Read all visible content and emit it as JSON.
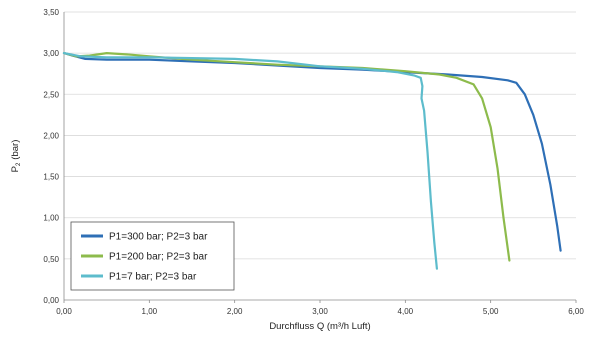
{
  "chart_data": {
    "type": "line",
    "title": "",
    "xlabel": "Durchfluss Q (m³/h Luft)",
    "ylabel_main": "P",
    "ylabel_sub": "2",
    "ylabel_unit": "(bar)",
    "xlim": [
      0,
      6
    ],
    "ylim": [
      0,
      3.5
    ],
    "x_ticks": [
      "0,00",
      "1,00",
      "2,00",
      "3,00",
      "4,00",
      "5,00",
      "6,00"
    ],
    "y_ticks": [
      "0,00",
      "0,50",
      "1,00",
      "1,50",
      "2,00",
      "2,50",
      "3,00",
      "3,50"
    ],
    "grid": "horizontal",
    "legend_position": "lower-left",
    "series": [
      {
        "name": "P1=300 bar; P2=3 bar",
        "color": "#2e6fb6",
        "points": [
          [
            0,
            3.0
          ],
          [
            0.1,
            2.97
          ],
          [
            0.25,
            2.93
          ],
          [
            0.5,
            2.92
          ],
          [
            1.0,
            2.92
          ],
          [
            1.5,
            2.9
          ],
          [
            2.0,
            2.88
          ],
          [
            2.5,
            2.85
          ],
          [
            3.0,
            2.82
          ],
          [
            3.5,
            2.8
          ],
          [
            4.0,
            2.77
          ],
          [
            4.5,
            2.74
          ],
          [
            4.9,
            2.71
          ],
          [
            5.2,
            2.67
          ],
          [
            5.3,
            2.64
          ],
          [
            5.4,
            2.5
          ],
          [
            5.5,
            2.25
          ],
          [
            5.6,
            1.9
          ],
          [
            5.7,
            1.4
          ],
          [
            5.78,
            0.9
          ],
          [
            5.82,
            0.6
          ]
        ]
      },
      {
        "name": "P1=200 bar; P2=3 bar",
        "color": "#8dbb4c",
        "points": [
          [
            0,
            3.0
          ],
          [
            0.15,
            2.96
          ],
          [
            0.3,
            2.97
          ],
          [
            0.5,
            3.0
          ],
          [
            0.8,
            2.98
          ],
          [
            1.0,
            2.96
          ],
          [
            1.5,
            2.92
          ],
          [
            2.0,
            2.89
          ],
          [
            2.5,
            2.86
          ],
          [
            3.0,
            2.84
          ],
          [
            3.5,
            2.82
          ],
          [
            4.0,
            2.78
          ],
          [
            4.4,
            2.74
          ],
          [
            4.6,
            2.7
          ],
          [
            4.8,
            2.62
          ],
          [
            4.9,
            2.45
          ],
          [
            5.0,
            2.1
          ],
          [
            5.08,
            1.6
          ],
          [
            5.15,
            1.0
          ],
          [
            5.22,
            0.48
          ]
        ]
      },
      {
        "name": "P1=7 bar; P2=3 bar",
        "color": "#5dbccc",
        "points": [
          [
            0,
            3.0
          ],
          [
            0.2,
            2.96
          ],
          [
            0.5,
            2.95
          ],
          [
            1.0,
            2.95
          ],
          [
            1.5,
            2.94
          ],
          [
            2.0,
            2.93
          ],
          [
            2.5,
            2.9
          ],
          [
            3.0,
            2.84
          ],
          [
            3.5,
            2.81
          ],
          [
            3.9,
            2.77
          ],
          [
            4.1,
            2.73
          ],
          [
            4.18,
            2.7
          ],
          [
            4.2,
            2.6
          ],
          [
            4.19,
            2.45
          ],
          [
            4.22,
            2.3
          ],
          [
            4.26,
            1.8
          ],
          [
            4.3,
            1.2
          ],
          [
            4.34,
            0.7
          ],
          [
            4.37,
            0.38
          ]
        ]
      }
    ]
  }
}
